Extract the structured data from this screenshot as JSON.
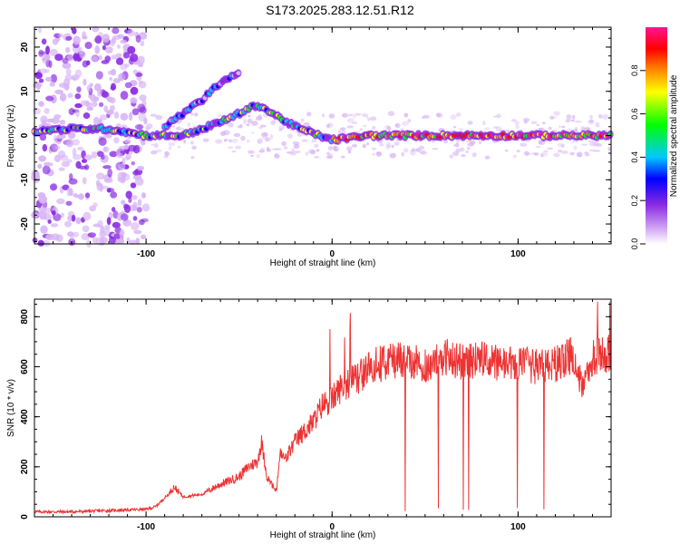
{
  "title": "S173.2025.283.12.51.R12",
  "chart_data": [
    {
      "type": "heatmap",
      "xlabel": "Height of straight line (km)",
      "ylabel": "Frequency (Hz)",
      "xlim": [
        -160,
        150
      ],
      "ylim": [
        -24.5,
        24.5
      ],
      "x_ticks": [
        -100,
        0,
        100
      ],
      "x_tick_labels": [
        "-100",
        "0",
        "100"
      ],
      "y_ticks": [
        -20,
        -10,
        0,
        10,
        20
      ],
      "y_tick_labels": [
        "-20",
        "-10",
        "0",
        "10",
        "20"
      ],
      "colorbar": {
        "label": "Normalized spectral amplitude",
        "range": [
          0,
          1
        ],
        "ticks": [
          0.0,
          0.2,
          0.4,
          0.6,
          0.8
        ],
        "tick_labels": [
          "0.0",
          "0.2",
          "0.4",
          "0.6",
          "0.8"
        ],
        "colors": [
          "#ffffff",
          "#d7b3f5",
          "#8a2be2",
          "#0000ff",
          "#00c8ff",
          "#00ff00",
          "#ffff00",
          "#ff8c00",
          "#ff0000",
          "#ff1493"
        ]
      },
      "ridges": [
        {
          "x": [
            -160,
            -140,
            -120,
            -100,
            -80,
            -60,
            -40,
            -20,
            0,
            20,
            50,
            100,
            150
          ],
          "y": [
            1,
            1.5,
            1.5,
            0,
            0,
            3,
            7,
            2,
            -1,
            0,
            0,
            0,
            0
          ]
        },
        {
          "x": [
            -90,
            -70,
            -60,
            -50
          ],
          "y": [
            2,
            8,
            12,
            14
          ]
        }
      ]
    },
    {
      "type": "line",
      "xlabel": "Height of straight line (km)",
      "ylabel": "SNR (10 * v/v)",
      "xlim": [
        -160,
        150
      ],
      "ylim": [
        0,
        870
      ],
      "x_ticks": [
        -100,
        0,
        100
      ],
      "x_tick_labels": [
        "-100",
        "0",
        "100"
      ],
      "y_ticks": [
        0,
        200,
        400,
        600,
        800
      ],
      "y_tick_labels": [
        "0",
        "200",
        "400",
        "600",
        "800"
      ],
      "series": [
        {
          "color": "#ee3333",
          "x": [
            -160,
            -140,
            -120,
            -100,
            -95,
            -88,
            -85,
            -80,
            -70,
            -60,
            -50,
            -45,
            -40,
            -38,
            -35,
            -30,
            -28,
            -25,
            -20,
            -15,
            -10,
            -5,
            0,
            5,
            10,
            15,
            20,
            30,
            40,
            50,
            60,
            70,
            80,
            90,
            100,
            110,
            120,
            130,
            135,
            140,
            145,
            150
          ],
          "y": [
            20,
            20,
            25,
            30,
            40,
            90,
            120,
            80,
            90,
            130,
            160,
            200,
            220,
            300,
            160,
            100,
            250,
            230,
            300,
            340,
            380,
            450,
            470,
            520,
            540,
            560,
            600,
            620,
            630,
            600,
            640,
            620,
            630,
            610,
            610,
            600,
            610,
            650,
            500,
            640,
            650,
            650
          ]
        }
      ]
    }
  ]
}
